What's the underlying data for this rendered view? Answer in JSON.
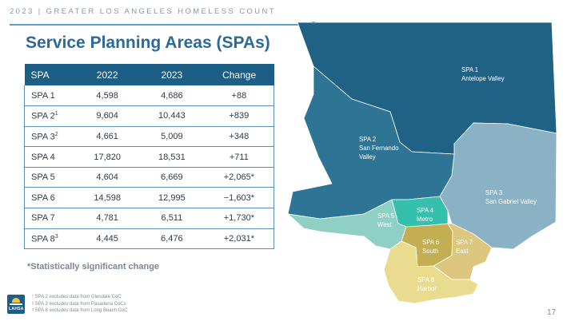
{
  "header": {
    "text": "2023 | GREATER LOS ANGELES HOMELESS COUNT"
  },
  "title": "Service Planning Areas (SPAs)",
  "table": {
    "headers": [
      "SPA",
      "2022",
      "2023",
      "Change"
    ],
    "rows": [
      {
        "spa": "SPA 1",
        "sup": "",
        "y2022": "4,598",
        "y2023": "4,686",
        "change": "+88"
      },
      {
        "spa": "SPA 2",
        "sup": "1",
        "y2022": "9,604",
        "y2023": "10,443",
        "change": "+839"
      },
      {
        "spa": "SPA 3",
        "sup": "2",
        "y2022": "4,661",
        "y2023": "5,009",
        "change": "+348"
      },
      {
        "spa": "SPA 4",
        "sup": "",
        "y2022": "17,820",
        "y2023": "18,531",
        "change": "+711"
      },
      {
        "spa": "SPA 5",
        "sup": "",
        "y2022": "4,604",
        "y2023": "6,669",
        "change": "+2,065*"
      },
      {
        "spa": "SPA 6",
        "sup": "",
        "y2022": "14,598",
        "y2023": "12,995",
        "change": "−1,603*"
      },
      {
        "spa": "SPA 7",
        "sup": "",
        "y2022": "4,781",
        "y2023": "6,511",
        "change": "+1,730*"
      },
      {
        "spa": "SPA 8",
        "sup": "3",
        "y2022": "4,445",
        "y2023": "6,476",
        "change": "+2,031*"
      }
    ]
  },
  "note": "*Statistically significant change",
  "footnotes": [
    "¹ SPA 2 excludes data from Glendale CoC",
    "² SPA 3 excludes data from Pasadena CoCs",
    "³ SPA 8 excludes data from Long Beach CoC"
  ],
  "logo": {
    "text": "LAHSA"
  },
  "page_number": "17",
  "map": {
    "labels": {
      "spa1": [
        "SPA 1",
        "Antelope Valley"
      ],
      "spa2": [
        "SPA 2",
        "San Fernando",
        "Valley"
      ],
      "spa3": [
        "SPA 3",
        "San Gabriel Valley"
      ],
      "spa4": [
        "SPA 4",
        "Metro"
      ],
      "spa5": [
        "SPA 5",
        "West"
      ],
      "spa6": [
        "SPA 6",
        "South"
      ],
      "spa7": [
        "SPA 7",
        "East"
      ],
      "spa8": [
        "SPA 8",
        "Harbor"
      ]
    },
    "colors": {
      "spa1": "#1f6286",
      "spa2": "#2d7495",
      "spa3": "#8bb1c4",
      "spa4": "#35c0ae",
      "spa5": "#8ed1c4",
      "spa6": "#c4ae52",
      "spa7": "#ddc77e",
      "spa8": "#e9dc8e"
    }
  }
}
